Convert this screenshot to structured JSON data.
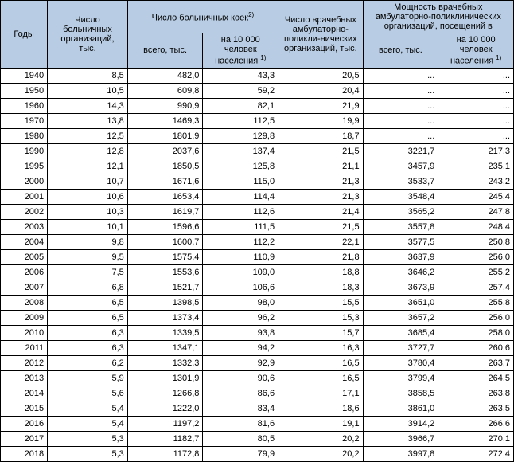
{
  "table": {
    "headers": {
      "years": "Годы",
      "hosp_orgs": "Число больничных организаций, тыс.",
      "beds_group": "Число больничных коек",
      "beds_sup": "2)",
      "beds_total": "всего, тыс.",
      "beds_per10k": "на 10 000 человек населения ",
      "beds_per10k_sup": "1)",
      "amb_orgs": "Число врачебных амбулаторно-поликли-нических организаций, тыс.",
      "cap_group": "Мощность врачебных амбулаторно-поликлинических организаций, посещений в",
      "cap_total": "всего, тыс.",
      "cap_per10k": "на 10 000 человек населения ",
      "cap_per10k_sup": "1)"
    },
    "rows": [
      {
        "y": "1940",
        "a": "8,5",
        "b": "482,0",
        "c": "43,3",
        "d": "20,5",
        "e": "...",
        "f": "..."
      },
      {
        "y": "1950",
        "a": "10,5",
        "b": "609,8",
        "c": "59,2",
        "d": "20,4",
        "e": "...",
        "f": "..."
      },
      {
        "y": "1960",
        "a": "14,3",
        "b": "990,9",
        "c": "82,1",
        "d": "21,9",
        "e": "...",
        "f": "..."
      },
      {
        "y": "1970",
        "a": "13,8",
        "b": "1469,3",
        "c": "112,5",
        "d": "19,9",
        "e": "...",
        "f": "..."
      },
      {
        "y": "1980",
        "a": "12,5",
        "b": "1801,9",
        "c": "129,8",
        "d": "18,7",
        "e": "...",
        "f": "..."
      },
      {
        "y": "1990",
        "a": "12,8",
        "b": "2037,6",
        "c": "137,4",
        "d": "21,5",
        "e": "3221,7",
        "f": "217,3"
      },
      {
        "y": "1995",
        "a": "12,1",
        "b": "1850,5",
        "c": "125,8",
        "d": "21,1",
        "e": "3457,9",
        "f": "235,1"
      },
      {
        "y": "2000",
        "a": "10,7",
        "b": "1671,6",
        "c": "115,0",
        "d": "21,3",
        "e": "3533,7",
        "f": "243,2"
      },
      {
        "y": "2001",
        "a": "10,6",
        "b": "1653,4",
        "c": "114,4",
        "d": "21,3",
        "e": "3548,4",
        "f": "245,4"
      },
      {
        "y": "2002",
        "a": "10,3",
        "b": "1619,7",
        "c": "112,6",
        "d": "21,4",
        "e": "3565,2",
        "f": "247,8"
      },
      {
        "y": "2003",
        "a": "10,1",
        "b": "1596,6",
        "c": "111,5",
        "d": "21,5",
        "e": "3557,8",
        "f": "248,4"
      },
      {
        "y": "2004",
        "a": "9,8",
        "b": "1600,7",
        "c": "112,2",
        "d": "22,1",
        "e": "3577,5",
        "f": "250,8"
      },
      {
        "y": "2005",
        "a": "9,5",
        "b": "1575,4",
        "c": "110,9",
        "d": "21,8",
        "e": "3637,9",
        "f": "256,0"
      },
      {
        "y": "2006",
        "a": "7,5",
        "b": "1553,6",
        "c": "109,0",
        "d": "18,8",
        "e": "3646,2",
        "f": "255,2"
      },
      {
        "y": "2007",
        "a": "6,8",
        "b": "1521,7",
        "c": "106,6",
        "d": "18,3",
        "e": "3673,9",
        "f": "257,4"
      },
      {
        "y": "2008",
        "a": "6,5",
        "b": "1398,5",
        "c": "98,0",
        "d": "15,5",
        "e": "3651,0",
        "f": "255,8"
      },
      {
        "y": "2009",
        "a": "6,5",
        "b": "1373,4",
        "c": "96,2",
        "d": "15,3",
        "e": "3657,2",
        "f": "256,0"
      },
      {
        "y": "2010",
        "a": "6,3",
        "b": "1339,5",
        "c": "93,8",
        "d": "15,7",
        "e": "3685,4",
        "f": "258,0"
      },
      {
        "y": "2011",
        "a": "6,3",
        "b": "1347,1",
        "c": "94,2",
        "d": "16,3",
        "e": "3727,7",
        "f": "260,6"
      },
      {
        "y": "2012",
        "a": "6,2",
        "b": "1332,3",
        "c": "92,9",
        "d": "16,5",
        "e": "3780,4",
        "f": "263,7"
      },
      {
        "y": "2013",
        "a": "5,9",
        "b": "1301,9",
        "c": "90,6",
        "d": "16,5",
        "e": "3799,4",
        "f": "264,5"
      },
      {
        "y": "2014",
        "a": "5,6",
        "b": "1266,8",
        "c": "86,6",
        "d": "17,1",
        "e": "3858,5",
        "f": "263,8"
      },
      {
        "y": "2015",
        "a": "5,4",
        "b": "1222,0",
        "c": "83,4",
        "d": "18,6",
        "e": "3861,0",
        "f": "263,5"
      },
      {
        "y": "2016",
        "a": "5,4",
        "b": "1197,2",
        "c": "81,6",
        "d": "19,1",
        "e": "3914,2",
        "f": "266,6"
      },
      {
        "y": "2017",
        "a": "5,3",
        "b": "1182,7",
        "c": "80,5",
        "d": "20,2",
        "e": "3966,7",
        "f": "270,1"
      },
      {
        "y": "2018",
        "a": "5,3",
        "b": "1172,8",
        "c": "79,9",
        "d": "20,2",
        "e": "3997,8",
        "f": "272,4"
      }
    ]
  }
}
